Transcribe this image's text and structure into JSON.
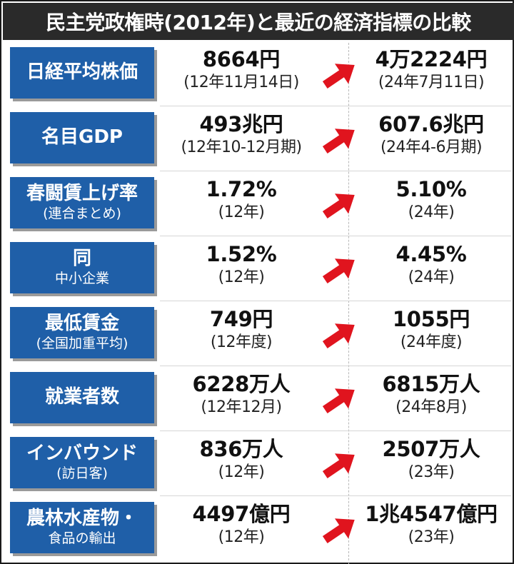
{
  "title": "民主党政権時(2012年)と最近の経済指標の比較",
  "accent_color": "#1f5fa8",
  "arrow_color": "#e0141e",
  "arrow_icon": "arrow-up-right",
  "rows": [
    {
      "label": "日経平均株価",
      "label_sub": "",
      "old_value": "8664円",
      "old_note": "(12年11月14日)",
      "new_value": "4万2224円",
      "new_note": "(24年7月11日)"
    },
    {
      "label": "名目GDP",
      "label_sub": "",
      "old_value": "493兆円",
      "old_note": "(12年10-12月期)",
      "new_value": "607.6兆円",
      "new_note": "(24年4-6月期)"
    },
    {
      "label": "春闘賃上げ率",
      "label_sub": "(連合まとめ)",
      "old_value": "1.72%",
      "old_note": "(12年)",
      "new_value": "5.10%",
      "new_note": "(24年)"
    },
    {
      "label": "同",
      "label_sub": "中小企業",
      "old_value": "1.52%",
      "old_note": "(12年)",
      "new_value": "4.45%",
      "new_note": "(24年)"
    },
    {
      "label": "最低賃金",
      "label_sub": "(全国加重平均)",
      "old_value": "749円",
      "old_note": "(12年度)",
      "new_value": "1055円",
      "new_note": "(24年度)"
    },
    {
      "label": "就業者数",
      "label_sub": "",
      "old_value": "6228万人",
      "old_note": "(12年12月)",
      "new_value": "6815万人",
      "new_note": "(24年8月)"
    },
    {
      "label": "インバウンド",
      "label_sub": "(訪日客)",
      "old_value": "836万人",
      "old_note": "(12年)",
      "new_value": "2507万人",
      "new_note": "(23年)"
    },
    {
      "label": "農林水産物・",
      "label_sub": "食品の輸出",
      "old_value": "4497億円",
      "old_note": "(12年)",
      "new_value": "1兆4547億円",
      "new_note": "(23年)"
    }
  ]
}
